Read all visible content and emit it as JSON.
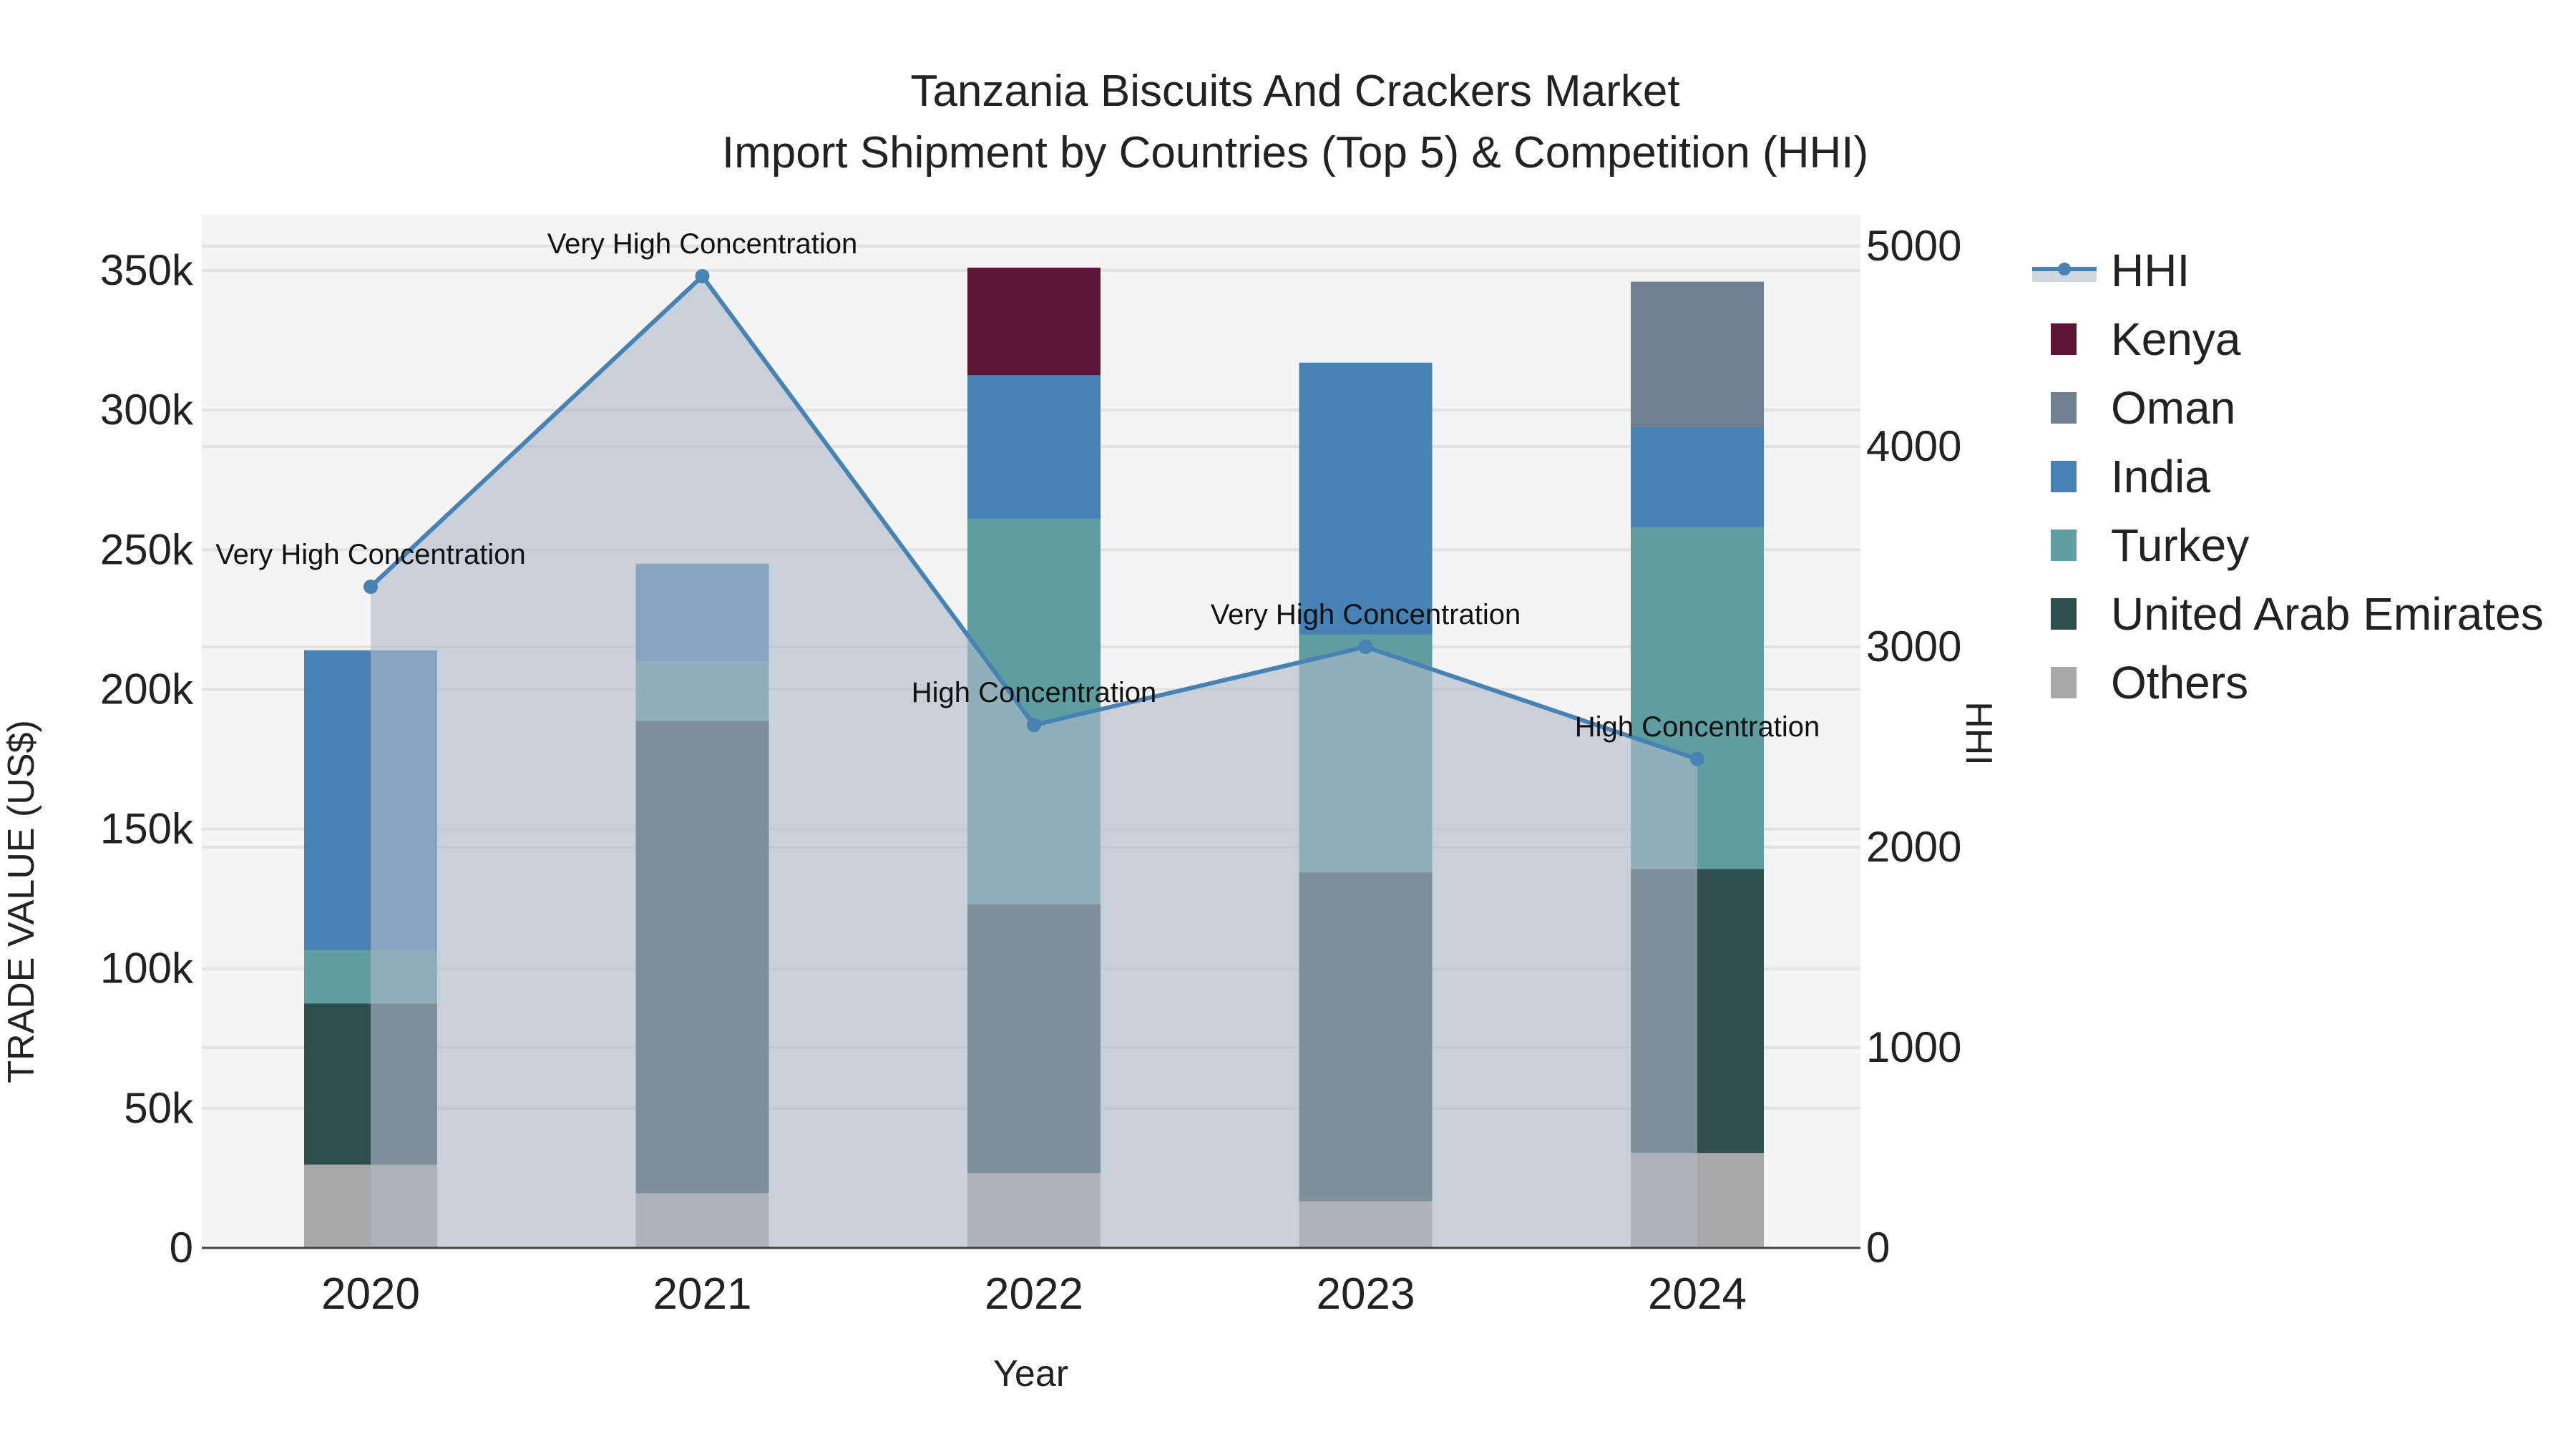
{
  "title": {
    "line1": "Tanzania Biscuits And Crackers Market",
    "line2": "Import Shipment by Countries (Top 5) & Competition (HHI)"
  },
  "axes": {
    "x_title": "Year",
    "y_left_title": "TRADE VALUE (US$)",
    "y_right_title": "HHI",
    "y_left_ticks": [
      "0",
      "50k",
      "100k",
      "150k",
      "200k",
      "250k",
      "300k",
      "350k"
    ],
    "y_right_ticks": [
      "0",
      "1000",
      "2000",
      "3000",
      "4000",
      "5000"
    ],
    "x_ticks": [
      "2020",
      "2021",
      "2022",
      "2023",
      "2024"
    ]
  },
  "legend": [
    {
      "name": "HHI",
      "color": "#4682B4",
      "kind": "line"
    },
    {
      "name": "Kenya",
      "color": "#5E1435",
      "kind": "bar"
    },
    {
      "name": "Oman",
      "color": "#6F7F8F",
      "kind": "bar"
    },
    {
      "name": "India",
      "color": "#4682B4",
      "kind": "bar"
    },
    {
      "name": "Turkey",
      "color": "#5F9EA0",
      "kind": "bar"
    },
    {
      "name": "United Arab Emirates",
      "color": "#2F4F4F",
      "kind": "bar"
    },
    {
      "name": "Others",
      "color": "#A9A9A9",
      "kind": "bar"
    }
  ],
  "chart_data": {
    "type": "bar",
    "stacked": true,
    "title": "Tanzania Biscuits And Crackers Market — Import Shipment by Countries (Top 5) & Competition (HHI)",
    "xlabel": "Year",
    "ylabel": "TRADE VALUE (US$)",
    "y2label": "HHI",
    "ylim": [
      0,
      370000
    ],
    "y2lim": [
      0,
      5180
    ],
    "grid": true,
    "legend_position": "right",
    "categories": [
      "2020",
      "2021",
      "2022",
      "2023",
      "2024"
    ],
    "series": [
      {
        "name": "Others",
        "color": "#A9A9A9",
        "values": [
          29800,
          19600,
          26800,
          16700,
          34000
        ]
      },
      {
        "name": "United Arab Emirates",
        "color": "#2F4F4F",
        "values": [
          57700,
          169100,
          96200,
          117800,
          101700
        ]
      },
      {
        "name": "Turkey",
        "color": "#5F9EA0",
        "values": [
          19000,
          21300,
          138000,
          85100,
          122300
        ]
      },
      {
        "name": "India",
        "color": "#4682B4",
        "values": [
          107500,
          35000,
          51500,
          97400,
          36000
        ]
      },
      {
        "name": "Oman",
        "color": "#6F7F8F",
        "values": [
          0,
          0,
          0,
          0,
          52000
        ]
      },
      {
        "name": "Kenya",
        "color": "#5E1435",
        "values": [
          0,
          0,
          38500,
          0,
          0
        ]
      }
    ],
    "line_series": {
      "name": "HHI",
      "axis": "right",
      "color": "#4682B4",
      "fill": "tozeroy",
      "values": [
        3300,
        4850,
        2610,
        3000,
        2440
      ],
      "annotations": [
        "Very High Concentration",
        "Very High Concentration",
        "High Concentration",
        "Very High Concentration",
        "High Concentration"
      ]
    }
  }
}
